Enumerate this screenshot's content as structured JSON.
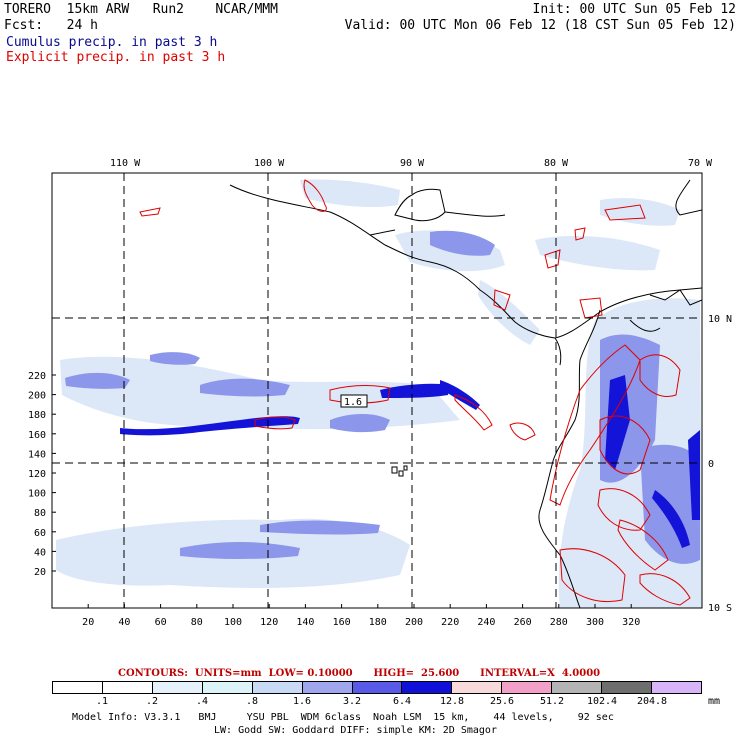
{
  "header": {
    "line1_left": "TORERO  15km ARW   Run2    NCAR/MMM",
    "line1_right": "Init: 00 UTC Sun 05 Feb 12",
    "line2_left": "Fcst:   24 h",
    "line2_right": "Valid: 00 UTC Mon 06 Feb 12 (18 CST Sun 05 Feb 12)",
    "cumulus": "Cumulus precip. in past 3 h",
    "explicit": "Explicit precip. in past 3 h",
    "cumulus_color": "#0a0a8c",
    "explicit_color": "#e00000"
  },
  "map": {
    "lon_labels": [
      "110 W",
      "100 W",
      "90 W",
      "80 W",
      "70 W"
    ],
    "lat_labels": [
      "10 N",
      "0",
      "10 S"
    ],
    "x_ticks": [
      "20",
      "40",
      "60",
      "80",
      "100",
      "120",
      "140",
      "160",
      "180",
      "200",
      "220",
      "240",
      "260",
      "280",
      "300",
      "320"
    ],
    "y_ticks": [
      "20",
      "40",
      "60",
      "80",
      "100",
      "120",
      "140",
      "160",
      "180",
      "200",
      "220"
    ],
    "contour_label": "1.6"
  },
  "contours": {
    "text": "CONTOURS:  UNITS=mm  LOW= 0.10000      HIGH=  25.600      INTERVAL=X  4.0000"
  },
  "scale": {
    "labels": [
      ".1",
      ".2",
      ".4",
      ".8",
      "1.6",
      "3.2",
      "6.4",
      "12.8",
      "25.6",
      "51.2",
      "102.4",
      "204.8"
    ],
    "colors": [
      "#ffffff",
      "#ffffff",
      "#e6f2fb",
      "#dcf4f7",
      "#c8daf5",
      "#a0a6ee",
      "#5a5ae8",
      "#1010d8",
      "#f8dada",
      "#f2a0c8",
      "#b4b4b4",
      "#6e6e6e",
      "#d8b4f8"
    ],
    "unit": "mm"
  },
  "footer": {
    "line1": "Model Info: V3.3.1   BMJ     YSU PBL  WDM 6class  Noah LSM  15 km,    44 levels,    92 sec",
    "line2": "LW: Godd SW: Goddard DIFF: simple KM: 2D Smagor"
  }
}
